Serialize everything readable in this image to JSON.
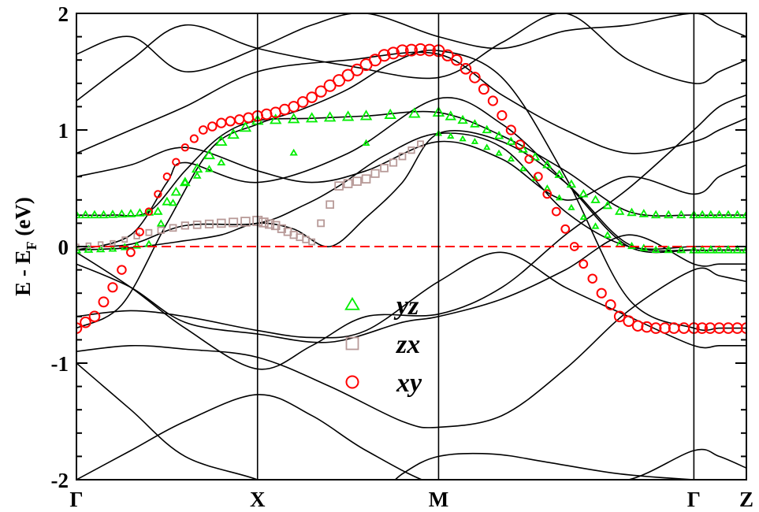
{
  "chart_data": {
    "type": "line",
    "title": "",
    "xlabel": "",
    "ylabel": "E - E_F (eV)",
    "ylabel_parts": {
      "main": "E - E",
      "sub": "F",
      "unit": " (eV)"
    },
    "ylim": [
      -2,
      2
    ],
    "y_ticks": [
      {
        "value": -2,
        "label": "-2"
      },
      {
        "value": -1,
        "label": "-1"
      },
      {
        "value": 0,
        "label": "0"
      },
      {
        "value": 1,
        "label": "1"
      },
      {
        "value": 2,
        "label": "2"
      }
    ],
    "xlim": [
      0,
      3.7
    ],
    "k_points": [
      {
        "x": 0,
        "label": "Γ"
      },
      {
        "x": 1,
        "label": "X"
      },
      {
        "x": 2,
        "label": "M"
      },
      {
        "x": 3.41,
        "label": "Γ"
      },
      {
        "x": 3.7,
        "label": "Z"
      }
    ],
    "fermi_level": 0,
    "grid": false,
    "legend_position": "center",
    "colors": {
      "bands": "#000000",
      "fermi": "#ff0000",
      "yz": "#00ee00",
      "zx": "#b89a98",
      "xy": "#ff0000"
    },
    "series": [
      {
        "name": "yz",
        "marker": "triangle"
      },
      {
        "name": "zx",
        "marker": "square"
      },
      {
        "name": "xy",
        "marker": "circle"
      }
    ],
    "bands": [
      {
        "x": [
          0,
          0.25,
          0.5,
          0.75,
          1,
          1.25,
          1.5,
          1.75,
          2,
          2.35,
          2.7,
          3.05,
          3.41,
          3.55,
          3.7
        ],
        "y": [
          -0.7,
          -0.5,
          0.2,
          0.85,
          1.05,
          1.18,
          1.35,
          1.58,
          1.68,
          1.45,
          0.6,
          -0.45,
          -0.7,
          -0.7,
          -0.7
        ]
      },
      {
        "x": [
          0,
          0.2,
          0.4,
          0.6,
          0.8,
          1,
          1.3,
          1.6,
          2,
          2.35,
          2.7,
          3.05,
          3.41,
          3.55,
          3.7
        ],
        "y": [
          0.27,
          0.27,
          0.3,
          0.65,
          0.95,
          1.08,
          1.1,
          1.12,
          1.15,
          0.95,
          0.65,
          0.3,
          0.27,
          0.27,
          0.27
        ]
      },
      {
        "x": [
          0,
          0.3,
          0.6,
          0.8,
          1,
          1.2,
          1.4,
          1.6,
          1.8,
          2,
          2.35,
          2.7,
          3.05,
          3.41,
          3.55,
          3.7
        ],
        "y": [
          -0.03,
          -0.01,
          0.05,
          0.1,
          0.2,
          0.15,
          0.0,
          0.25,
          0.55,
          0.97,
          0.9,
          0.55,
          0.02,
          -0.03,
          -0.03,
          -0.03
        ]
      },
      {
        "x": [
          0,
          0.3,
          0.6,
          1,
          1.25,
          1.45,
          1.7,
          2,
          2.35,
          2.7,
          3.05,
          3.41,
          3.55,
          3.7
        ],
        "y": [
          0.0,
          0.02,
          0.18,
          0.2,
          0.35,
          0.52,
          0.78,
          0.97,
          0.85,
          0.3,
          0.0,
          0.0,
          0.0,
          0.0
        ]
      },
      {
        "x": [
          0,
          0.3,
          0.5,
          0.6,
          1,
          1.5,
          2,
          2.35,
          2.7,
          3.05,
          3.41,
          3.55,
          3.7
        ],
        "y": [
          -0.03,
          0.1,
          0.55,
          0.72,
          0.55,
          0.8,
          1.27,
          1.05,
          0.55,
          0.0,
          -0.03,
          -0.03,
          -0.03
        ]
      },
      {
        "x": [
          0,
          0.3,
          0.6,
          1,
          1.4,
          1.8,
          2,
          2.35,
          2.7,
          3.05,
          3.41,
          3.55,
          3.7
        ],
        "y": [
          -0.15,
          -0.35,
          -0.65,
          -0.75,
          -0.82,
          -0.65,
          -0.6,
          -0.45,
          -0.2,
          0.1,
          -0.15,
          -0.15,
          -0.15
        ]
      },
      {
        "x": [
          0,
          0.3,
          0.6,
          1,
          1.4,
          1.8,
          2,
          2.35,
          2.7,
          3.05,
          3.41,
          3.55,
          3.7
        ],
        "y": [
          -0.9,
          -0.85,
          -0.88,
          -0.95,
          -1.2,
          -1.5,
          -1.55,
          -1.45,
          -1.05,
          -0.55,
          -0.2,
          -0.25,
          -0.3
        ]
      },
      {
        "x": [
          0,
          0.3,
          0.6,
          1,
          1.3,
          1.6,
          2,
          2.35,
          2.7,
          3.05,
          3.41,
          3.55,
          3.7
        ],
        "y": [
          -0.6,
          -0.55,
          -0.6,
          -0.72,
          -0.78,
          -0.72,
          -0.3,
          -0.05,
          -0.35,
          -0.6,
          -0.85,
          -0.85,
          -0.85
        ]
      },
      {
        "x": [
          0,
          0.3,
          0.6,
          1,
          1.3,
          1.6,
          2,
          2.35,
          2.7,
          3.05,
          3.41,
          3.55,
          3.7
        ],
        "y": [
          -0.05,
          -0.35,
          -0.7,
          -1.05,
          -0.85,
          -0.6,
          -0.58,
          -0.35,
          0.1,
          0.5,
          1.0,
          1.2,
          1.3
        ]
      },
      {
        "x": [
          0,
          0.3,
          0.6,
          1,
          1.3,
          1.6,
          2,
          2.35,
          2.7,
          3.05,
          3.41,
          3.55,
          3.7
        ],
        "y": [
          0.6,
          0.7,
          0.85,
          0.65,
          0.55,
          0.65,
          0.9,
          0.75,
          0.4,
          0.6,
          0.45,
          0.6,
          0.7
        ]
      },
      {
        "x": [
          0,
          0.3,
          0.6,
          1,
          1.5,
          2,
          2.35,
          2.7,
          3.05,
          3.41,
          3.55,
          3.7
        ],
        "y": [
          0.8,
          1.0,
          1.2,
          1.5,
          1.6,
          1.65,
          1.3,
          1.0,
          0.8,
          0.9,
          1.0,
          1.1
        ]
      },
      {
        "x": [
          0,
          0.3,
          0.6,
          1,
          1.5,
          2,
          2.35,
          2.7,
          3.05,
          3.41,
          3.55,
          3.7
        ],
        "y": [
          1.25,
          1.6,
          1.9,
          1.7,
          1.55,
          1.45,
          1.75,
          2.0,
          1.6,
          1.4,
          1.5,
          1.6
        ]
      },
      {
        "x": [
          0,
          0.3,
          0.6,
          1,
          1.3,
          1.6,
          2,
          2.35,
          2.7,
          3.05,
          3.41,
          3.55,
          3.7
        ],
        "y": [
          1.65,
          1.8,
          1.5,
          1.7,
          1.9,
          2.0,
          1.8,
          1.7,
          1.85,
          1.9,
          2.0,
          1.9,
          1.8
        ]
      },
      {
        "x": [
          0,
          0.3,
          0.6,
          1,
          1.3,
          1.6,
          1.8,
          2,
          2.3,
          2.6,
          3.0,
          3.41,
          3.55,
          3.7
        ],
        "y": [
          -1.0,
          -1.4,
          -1.8,
          -2.0,
          -2.2,
          -2.2,
          -1.95,
          -1.8,
          -1.78,
          -1.85,
          -1.95,
          -2.0,
          -2.0,
          -2.0
        ]
      },
      {
        "x": [
          0,
          0.3,
          0.6,
          1,
          1.3,
          1.6,
          2,
          2.35,
          2.7,
          3.05,
          3.41,
          3.55,
          3.7
        ],
        "y": [
          -2.0,
          -1.75,
          -1.5,
          -1.27,
          -1.45,
          -1.75,
          -2.05,
          -2.05,
          -2.0,
          -2.0,
          -1.75,
          -1.8,
          -1.9
        ]
      }
    ],
    "orbital_weights": {
      "yz": [
        {
          "x": [
            0,
            0.15,
            0.3,
            0.45,
            0.6,
            0.8,
            1,
            1.3,
            1.6,
            2,
            2.2,
            2.4,
            2.6,
            2.8,
            3.0,
            3.2,
            3.41,
            3.55,
            3.7
          ],
          "y": [
            0.27,
            0.27,
            0.28,
            0.3,
            0.55,
            0.9,
            1.08,
            1.1,
            1.12,
            1.15,
            1.05,
            0.9,
            0.7,
            0.45,
            0.3,
            0.27,
            0.27,
            0.27,
            0.27
          ],
          "size": [
            6,
            6,
            6,
            6,
            7,
            8,
            8,
            8,
            8,
            8,
            6,
            6,
            6,
            6,
            6,
            6,
            6,
            6,
            6
          ]
        },
        {
          "x": [
            0,
            0.2,
            0.4,
            0.6,
            0.8,
            2,
            2.2,
            2.4,
            2.6,
            2.8,
            3.0,
            3.2,
            3.41,
            3.55,
            3.7
          ],
          "y": [
            -0.03,
            -0.02,
            0.02,
            0.55,
            0.72,
            0.97,
            0.9,
            0.75,
            0.5,
            0.25,
            0.02,
            -0.03,
            -0.03,
            -0.03,
            -0.03
          ],
          "size": [
            6,
            5,
            5,
            5,
            5,
            4,
            4,
            4,
            4,
            4,
            5,
            5,
            6,
            6,
            6
          ]
        }
      ],
      "zx": [
        {
          "x": [
            0,
            0.2,
            0.4,
            0.6,
            0.8,
            1,
            1.1,
            1.2,
            1.3,
            1.45,
            1.6,
            1.75,
            1.9
          ],
          "y": [
            0.0,
            0.03,
            0.12,
            0.18,
            0.2,
            0.22,
            0.18,
            0.1,
            0.04,
            0.52,
            0.58,
            0.72,
            0.88
          ],
          "size": [
            4,
            4,
            5,
            6,
            7,
            8,
            7,
            6,
            5,
            7,
            7,
            6,
            5
          ]
        }
      ],
      "xy": [
        {
          "x": [
            0,
            0.1,
            0.2,
            0.3,
            0.4,
            0.5,
            0.6,
            0.7,
            0.8,
            0.9,
            1,
            1.1,
            1.2,
            1.3,
            1.4,
            1.5,
            1.6,
            1.7,
            1.8,
            1.9,
            2,
            2.1,
            2.2,
            2.3,
            2.4,
            2.5,
            2.6,
            2.7,
            2.8,
            2.9,
            3.0,
            3.1,
            3.2,
            3.3,
            3.41,
            3.5,
            3.6,
            3.7
          ],
          "y": [
            -0.7,
            -0.6,
            -0.35,
            -0.05,
            0.3,
            0.6,
            0.85,
            1.0,
            1.06,
            1.09,
            1.12,
            1.15,
            1.2,
            1.28,
            1.38,
            1.47,
            1.56,
            1.64,
            1.68,
            1.69,
            1.68,
            1.6,
            1.45,
            1.25,
            1.0,
            0.75,
            0.45,
            0.15,
            -0.15,
            -0.4,
            -0.6,
            -0.68,
            -0.7,
            -0.7,
            -0.7,
            -0.7,
            -0.7,
            -0.7
          ],
          "size": [
            9,
            9,
            8,
            7,
            6,
            6,
            6,
            7,
            8,
            8,
            9,
            9,
            9,
            9,
            10,
            10,
            10,
            10,
            10,
            10,
            10,
            9,
            9,
            8,
            8,
            7,
            7,
            7,
            7,
            8,
            9,
            9,
            9,
            9,
            9,
            9,
            9,
            9
          ]
        }
      ]
    }
  }
}
